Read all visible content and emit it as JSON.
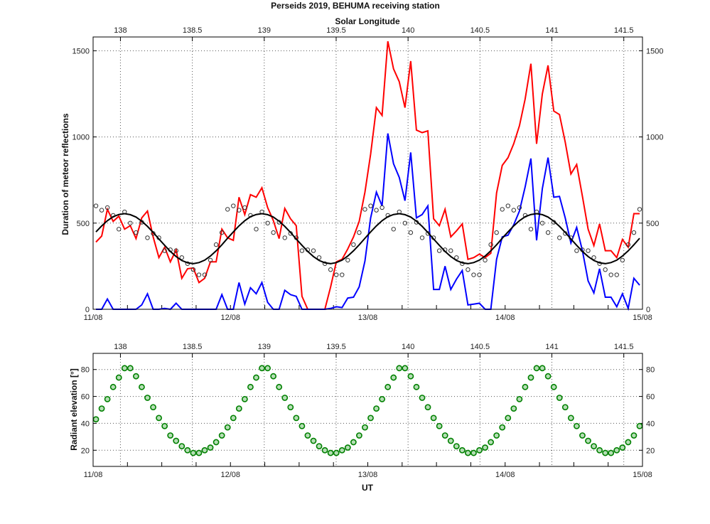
{
  "title": "Perseids 2019, BEHUMA receiving station",
  "chart_data": [
    {
      "type": "line",
      "top_xlabel": "Solar Longitude",
      "ylabel": "Duration of meteor reflections",
      "xlabel": "",
      "x_date_ticks": [
        "11/08",
        "12/08",
        "13/08",
        "14/08",
        "15/08"
      ],
      "x_top_ticks": [
        "138",
        "138.5",
        "139",
        "139.5",
        "140",
        "140.5",
        "141",
        "141.5"
      ],
      "x_top_lim": [
        137.81,
        141.63
      ],
      "y_ticks": [
        "0",
        "500",
        "1000",
        "1500"
      ],
      "ylim": [
        0,
        1580
      ],
      "grid": true,
      "colors": {
        "red": "#ff0000",
        "blue": "#0000ff",
        "circles": "#333333",
        "fit": "#000000"
      },
      "series": [
        {
          "style": "red line",
          "values": [
            390,
            425,
            580,
            510,
            540,
            465,
            485,
            410,
            530,
            570,
            420,
            300,
            360,
            275,
            345,
            180,
            235,
            240,
            155,
            180,
            275,
            275,
            465,
            415,
            400,
            650,
            550,
            665,
            650,
            705,
            590,
            515,
            410,
            585,
            525,
            485,
            75,
            0,
            0,
            0,
            0,
            130,
            275,
            290,
            350,
            420,
            510,
            680,
            900,
            1170,
            1125,
            1555,
            1395,
            1320,
            1170,
            1440,
            1040,
            1025,
            1035,
            525,
            485,
            580,
            420,
            455,
            495,
            290,
            300,
            320,
            300,
            325,
            675,
            835,
            880,
            960,
            1065,
            1220,
            1425,
            960,
            1250,
            1415,
            1150,
            1130,
            970,
            785,
            840,
            655,
            465,
            370,
            495,
            340,
            340,
            300,
            405,
            360,
            555,
            555
          ]
        },
        {
          "style": "blue line",
          "values": [
            0,
            0,
            60,
            0,
            0,
            0,
            0,
            0,
            25,
            90,
            0,
            0,
            5,
            0,
            35,
            0,
            0,
            0,
            0,
            0,
            0,
            0,
            85,
            0,
            0,
            155,
            30,
            125,
            90,
            155,
            40,
            0,
            0,
            110,
            85,
            75,
            0,
            0,
            0,
            0,
            0,
            5,
            15,
            10,
            65,
            70,
            130,
            280,
            530,
            680,
            600,
            1020,
            845,
            765,
            630,
            910,
            530,
            550,
            600,
            115,
            115,
            250,
            115,
            175,
            225,
            25,
            30,
            35,
            0,
            0,
            290,
            420,
            430,
            490,
            570,
            710,
            875,
            400,
            700,
            880,
            650,
            655,
            530,
            385,
            475,
            340,
            165,
            95,
            235,
            70,
            70,
            15,
            90,
            5,
            180,
            140
          ]
        },
        {
          "style": "open circles",
          "values": [
            600,
            575,
            590,
            545,
            465,
            565,
            500,
            445,
            505,
            415,
            440,
            415,
            340,
            345,
            340,
            300,
            265,
            230,
            200,
            200,
            285,
            375,
            445,
            580,
            600,
            575,
            590,
            545,
            465,
            565,
            500,
            445,
            505,
            415,
            440,
            415,
            340,
            345,
            340,
            300,
            265,
            230,
            200,
            200,
            285,
            375,
            445,
            580,
            600,
            575,
            590,
            545,
            465,
            565,
            500,
            445,
            505,
            415,
            440,
            415,
            340,
            345,
            340,
            300,
            265,
            230,
            200,
            200,
            285,
            375,
            445,
            580,
            600,
            575,
            590,
            545,
            465,
            565,
            500,
            445,
            505,
            415,
            440,
            415,
            340,
            345,
            340,
            300,
            265,
            230,
            200,
            200,
            285,
            375,
            445,
            580
          ]
        },
        {
          "style": "black smooth curve",
          "values": [
            449,
            484,
            514,
            537,
            550,
            555,
            549,
            535,
            511,
            481,
            446,
            408,
            371,
            336,
            306,
            283,
            270,
            265,
            271,
            285,
            309,
            339,
            374,
            412,
            449,
            484,
            514,
            537,
            550,
            555,
            549,
            535,
            511,
            481,
            446,
            408,
            371,
            336,
            306,
            283,
            270,
            265,
            271,
            285,
            309,
            339,
            374,
            412,
            449,
            484,
            514,
            537,
            550,
            555,
            549,
            535,
            511,
            481,
            446,
            408,
            371,
            336,
            306,
            283,
            270,
            265,
            271,
            285,
            309,
            339,
            374,
            412,
            449,
            484,
            514,
            537,
            550,
            555,
            549,
            535,
            511,
            481,
            446,
            408,
            371,
            336,
            306,
            283,
            270,
            265,
            271,
            285,
            309,
            339,
            374,
            412
          ]
        }
      ]
    },
    {
      "type": "scatter",
      "top_xlabel": "",
      "ylabel": "Radiant elevation [°]",
      "xlabel": "UT",
      "x_date_ticks": [
        "11/08",
        "12/08",
        "13/08",
        "14/08",
        "15/08"
      ],
      "x_top_ticks": [
        "138",
        "138.5",
        "139",
        "139.5",
        "140",
        "140.5",
        "141",
        "141.5"
      ],
      "x_top_lim": [
        137.81,
        141.63
      ],
      "y_ticks": [
        "20",
        "40",
        "60",
        "80"
      ],
      "ylim": [
        8,
        92
      ],
      "grid": true,
      "colors": {
        "marker_fill": "#b5deb5",
        "marker_edge": "#008000"
      },
      "series": [
        {
          "style": "green circles",
          "values": [
            43,
            51,
            58,
            67,
            74,
            81,
            81,
            75,
            67,
            59,
            52,
            44,
            38,
            31,
            27,
            23,
            20,
            18,
            18,
            20,
            22,
            26,
            31,
            37,
            44,
            51,
            58,
            67,
            74,
            81,
            81,
            75,
            67,
            59,
            52,
            44,
            38,
            31,
            27,
            23,
            20,
            18,
            18,
            20,
            22,
            26,
            31,
            37,
            44,
            51,
            58,
            67,
            74,
            81,
            81,
            75,
            67,
            59,
            52,
            44,
            38,
            31,
            27,
            23,
            20,
            18,
            18,
            20,
            22,
            26,
            31,
            37,
            44,
            51,
            58,
            67,
            74,
            81,
            81,
            75,
            67,
            59,
            52,
            44,
            38,
            31,
            27,
            23,
            20,
            18,
            18,
            20,
            22,
            26,
            31,
            38
          ]
        }
      ]
    }
  ],
  "time_ut": [
    "11/08 00:30",
    "11/08 01:30",
    "11/08 02:30",
    "11/08 03:30",
    "11/08 04:30",
    "11/08 05:30",
    "11/08 06:30",
    "11/08 07:30",
    "11/08 08:30",
    "11/08 09:30",
    "11/08 10:30",
    "11/08 11:30",
    "11/08 12:30",
    "11/08 13:30",
    "11/08 14:30",
    "11/08 15:30",
    "11/08 16:30",
    "11/08 17:30",
    "11/08 18:30",
    "11/08 19:30",
    "11/08 20:30",
    "11/08 21:30",
    "11/08 22:30",
    "11/08 23:30",
    "12/08 00:30",
    "12/08 01:30",
    "12/08 02:30",
    "12/08 03:30",
    "12/08 04:30",
    "12/08 05:30",
    "12/08 06:30",
    "12/08 07:30",
    "12/08 08:30",
    "12/08 09:30",
    "12/08 10:30",
    "12/08 11:30",
    "12/08 12:30",
    "12/08 13:30",
    "12/08 14:30",
    "12/08 15:30",
    "12/08 16:30",
    "12/08 17:30",
    "12/08 18:30",
    "12/08 19:30",
    "12/08 20:30",
    "12/08 21:30",
    "12/08 22:30",
    "12/08 23:30",
    "13/08 00:30",
    "13/08 01:30",
    "13/08 02:30",
    "13/08 03:30",
    "13/08 04:30",
    "13/08 05:30",
    "13/08 06:30",
    "13/08 07:30",
    "13/08 08:30",
    "13/08 09:30",
    "13/08 10:30",
    "13/08 11:30",
    "13/08 12:30",
    "13/08 13:30",
    "13/08 14:30",
    "13/08 15:30",
    "13/08 16:30",
    "13/08 17:30",
    "13/08 18:30",
    "13/08 19:30",
    "13/08 20:30",
    "13/08 21:30",
    "13/08 22:30",
    "13/08 23:30",
    "14/08 00:30",
    "14/08 01:30",
    "14/08 02:30",
    "14/08 03:30",
    "14/08 04:30",
    "14/08 05:30",
    "14/08 06:30",
    "14/08 07:30",
    "14/08 08:30",
    "14/08 09:30",
    "14/08 10:30",
    "14/08 11:30",
    "14/08 12:30",
    "14/08 13:30",
    "14/08 14:30",
    "14/08 15:30",
    "14/08 16:30",
    "14/08 17:30",
    "14/08 18:30",
    "14/08 19:30",
    "14/08 20:30",
    "14/08 21:30",
    "14/08 22:30",
    "14/08 23:30"
  ]
}
